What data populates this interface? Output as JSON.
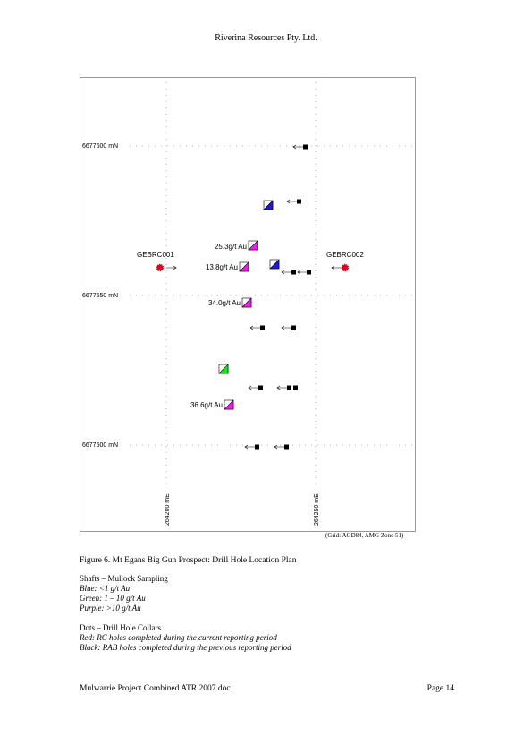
{
  "header": {
    "company": "Riverina Resources Pty. Ltd."
  },
  "map": {
    "northings": [
      "6677600 mN",
      "6677550 mN",
      "6677500 mN"
    ],
    "eastings": [
      "264200 mE",
      "264250 mE"
    ],
    "grid_note": "(Grid: AGD84, AMG Zone 51)",
    "holes": {
      "rc_left": "GEBRC001",
      "rc_right": "GEBRC002"
    },
    "assays": [
      "25.3g/t Au",
      "13.8g/t Au",
      "34.0g/t Au",
      "36.6g/t Au"
    ],
    "colors": {
      "red": "#e4001b",
      "blue": "#1d19d8",
      "green": "#19e619",
      "purple": "#f01aee",
      "black": "#000000"
    }
  },
  "caption": "Figure 6. Mt Egans Big Gun Prospect: Drill Hole Location Plan",
  "legend": {
    "shafts_title": "Shafts – Mullock Sampling",
    "blue": "Blue: <1 g/t Au",
    "green": "Green: 1 – 10 g/t Au",
    "purple": "Purple: >10 g/t Au",
    "dots_title": "Dots – Drill Hole Collars",
    "red": "Red: RC holes completed during the current reporting period",
    "black": "Black: RAB holes completed during the previous reporting period"
  },
  "footer": {
    "file": "Mulwarrie Project Combined ATR 2007.doc",
    "page": "Page 14"
  }
}
